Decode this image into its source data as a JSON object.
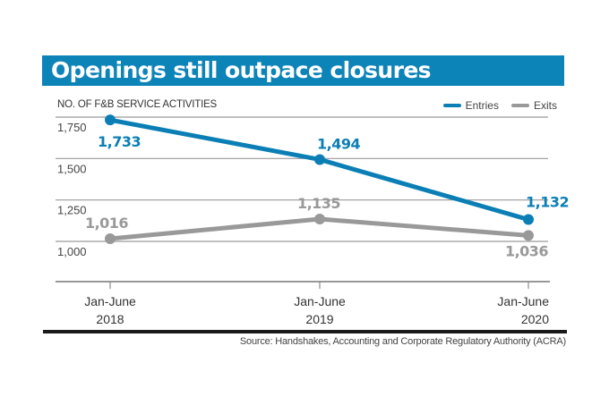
{
  "header": {
    "title": "Openings still outpace closures"
  },
  "colors": {
    "banner": "#0d84b8",
    "entries": "#0b7fb5",
    "exits": "#999999",
    "grid": "#9a9a9a",
    "axis": "#777777"
  },
  "legend": {
    "entries_label": "Entries",
    "exits_label": "Exits"
  },
  "source": "Source: Handshakes, Accounting and Corporate Regulatory Authority (ACRA)",
  "chart_data": {
    "type": "line",
    "title": "Openings still outpace closures",
    "ylabel": "NO. OF F&B SERVICE ACTIVITIES",
    "xlabel": "",
    "categories": [
      "Jan-June 2018",
      "Jan-June 2019",
      "Jan-June 2020"
    ],
    "category_lines": [
      [
        "Jan-June",
        "2018"
      ],
      [
        "Jan-June",
        "2019"
      ],
      [
        "Jan-June",
        "2020"
      ]
    ],
    "yticks": [
      1000,
      1250,
      1500,
      1750
    ],
    "ytick_labels": [
      "1,000",
      "1,250",
      "1,500",
      "1,750"
    ],
    "ylim": [
      750,
      1760
    ],
    "grid": true,
    "legend_position": "top-right",
    "series": [
      {
        "name": "Entries",
        "values": [
          1733,
          1494,
          1132
        ],
        "labels": [
          "1,733",
          "1,494",
          "1,132"
        ]
      },
      {
        "name": "Exits",
        "values": [
          1016,
          1135,
          1036
        ],
        "labels": [
          "1,016",
          "1,135",
          "1,036"
        ]
      }
    ]
  }
}
